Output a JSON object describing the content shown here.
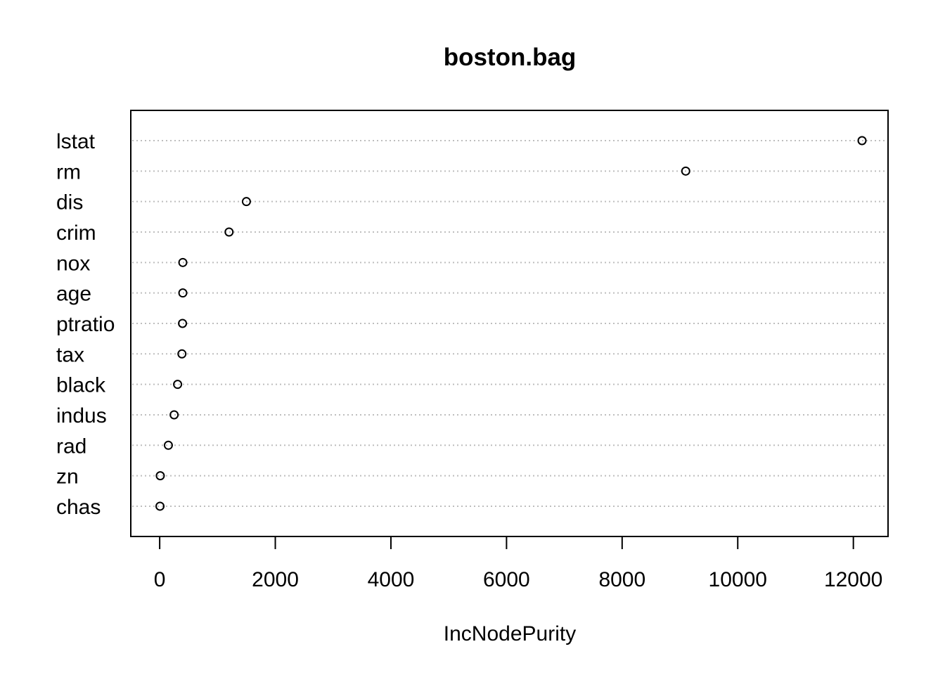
{
  "chart_data": {
    "type": "scatter",
    "title": "boston.bag",
    "xlabel": "IncNodePurity",
    "ylabel": "",
    "xlim": [
      -500,
      12600
    ],
    "xticks": [
      0,
      2000,
      4000,
      6000,
      8000,
      10000,
      12000
    ],
    "grid": "horizontal-dotted",
    "categories": [
      "lstat",
      "rm",
      "dis",
      "crim",
      "nox",
      "age",
      "ptratio",
      "tax",
      "black",
      "indus",
      "rad",
      "zn",
      "chas"
    ],
    "values": [
      12150,
      9100,
      1500,
      1200,
      400,
      400,
      395,
      385,
      310,
      250,
      150,
      10,
      5
    ]
  }
}
